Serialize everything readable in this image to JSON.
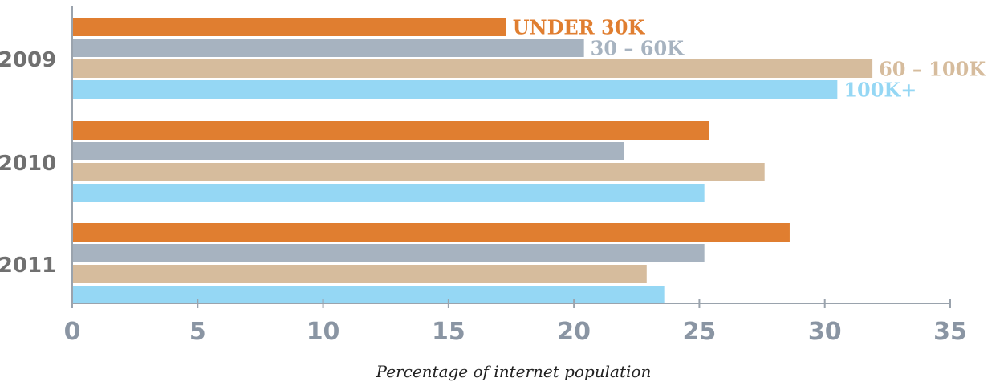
{
  "chart_data": {
    "type": "bar",
    "orientation": "horizontal",
    "categories": [
      "2009",
      "2010",
      "2011"
    ],
    "series": [
      {
        "name": "UNDER 30K",
        "color": "#e07e30",
        "values": [
          17.3,
          25.4,
          28.6
        ]
      },
      {
        "name": "30 – 60K",
        "color": "#a7b3c0",
        "values": [
          20.4,
          22.0,
          25.2
        ]
      },
      {
        "name": "60 – 100K",
        "color": "#d6bc9d",
        "values": [
          31.9,
          27.6,
          22.9
        ]
      },
      {
        "name": "100K+",
        "color": "#95d7f4",
        "values": [
          30.5,
          25.2,
          23.6
        ]
      }
    ],
    "xlabel": "Percentage of internet population",
    "ylabel": "",
    "xlim": [
      0,
      35
    ],
    "xticks": [
      "0",
      "5",
      "10",
      "15",
      "20",
      "25",
      "30",
      "35"
    ],
    "grid": false,
    "legend": "inline labels at end of 2009 bars"
  }
}
